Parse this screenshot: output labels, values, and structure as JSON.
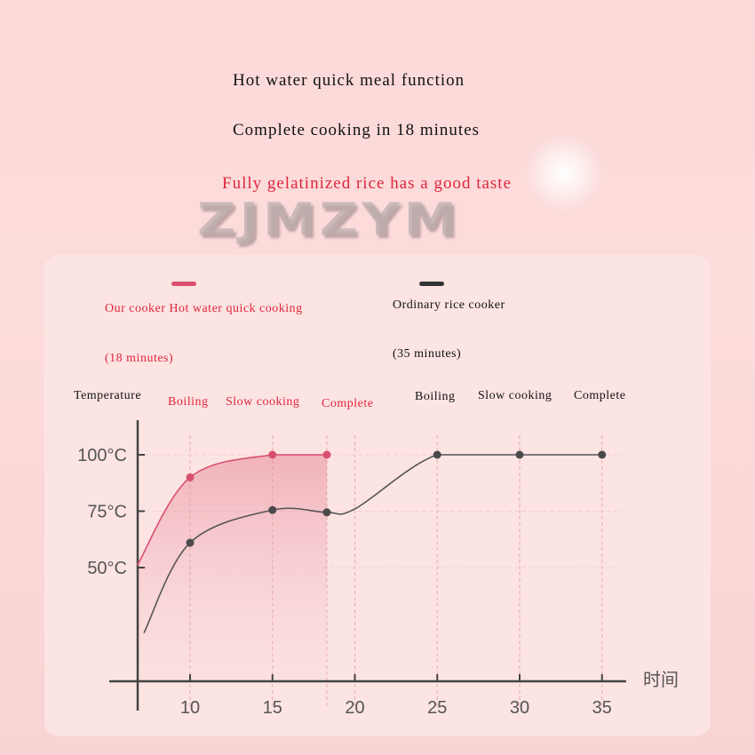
{
  "header": {
    "line1": "Hot water quick meal function",
    "line2": "Complete cooking in 18 minutes",
    "line3": "Fully gelatinized rice has a good taste"
  },
  "watermark": "ZJMZYM",
  "colors": {
    "ours": "#d9506e",
    "ordinary": "#555555",
    "accent_text": "#e0263e"
  },
  "chart_data": {
    "type": "line",
    "ylabel": "Temperature",
    "xlabel": "时间",
    "x_ticks": [
      10,
      15,
      20,
      25,
      30,
      35
    ],
    "x_tick_labels": [
      "10",
      "15",
      "20",
      "25",
      "30",
      "35"
    ],
    "y_ticks": [
      50,
      75,
      100
    ],
    "y_tick_labels": [
      "50°C",
      "75°C",
      "100°C"
    ],
    "xlim": [
      6.8,
      37.5
    ],
    "ylim": [
      0,
      110
    ],
    "grid": "dashed vertical at markers",
    "legend_placement": "top",
    "series": [
      {
        "name": "Our cooker Hot water quick cooking",
        "duration": "(18 minutes)",
        "color": "#d9506e",
        "filled": true,
        "curve": [
          [
            6.8,
            51
          ],
          [
            10,
            90
          ],
          [
            15,
            100
          ],
          [
            18.3,
            100
          ]
        ],
        "markers": [
          [
            10,
            90
          ],
          [
            15,
            100
          ],
          [
            18.3,
            100
          ]
        ],
        "phase_labels": [
          "Boiling",
          "Slow cooking",
          "Complete"
        ]
      },
      {
        "name": "Ordinary rice cooker",
        "duration": "(35 minutes)",
        "color": "#555555",
        "filled": false,
        "curve": [
          [
            7.2,
            21
          ],
          [
            10,
            61
          ],
          [
            15,
            75.5
          ],
          [
            18.3,
            74.5
          ],
          [
            20,
            76
          ],
          [
            25,
            100
          ],
          [
            30,
            100
          ],
          [
            35,
            100
          ]
        ],
        "markers": [
          [
            10,
            61
          ],
          [
            15,
            75.5
          ],
          [
            18.3,
            74.5
          ],
          [
            25,
            100
          ],
          [
            30,
            100
          ],
          [
            35,
            100
          ]
        ],
        "phase_labels": [
          "Boiling",
          "Slow cooking",
          "Complete"
        ]
      }
    ]
  }
}
